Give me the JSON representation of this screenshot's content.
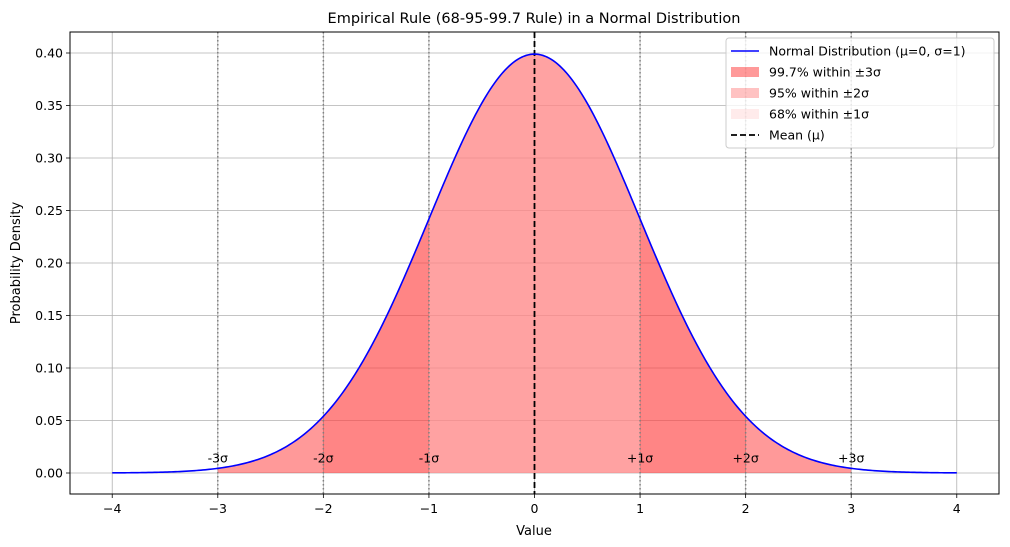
{
  "chart_data": {
    "type": "line",
    "title": "Empirical Rule (68-95-99.7 Rule) in a Normal Distribution",
    "xlabel": "Value",
    "ylabel": "Probability Density",
    "xlim": [
      -4.4,
      4.4
    ],
    "ylim": [
      -0.02,
      0.42
    ],
    "grid": true,
    "x_ticks": [
      -4,
      -3,
      -2,
      -1,
      0,
      1,
      2,
      3,
      4
    ],
    "x_tick_labels": [
      "−4",
      "−3",
      "−2",
      "−1",
      "0",
      "1",
      "2",
      "3",
      "4"
    ],
    "y_ticks": [
      0.0,
      0.05,
      0.1,
      0.15,
      0.2,
      0.25,
      0.3,
      0.35,
      0.4
    ],
    "y_tick_labels": [
      "0.00",
      "0.05",
      "0.10",
      "0.15",
      "0.20",
      "0.25",
      "0.30",
      "0.35",
      "0.40"
    ],
    "series": [
      {
        "name": "Normal Distribution (μ=0, σ=1)",
        "kind": "line",
        "color": "#0000ff",
        "mu": 0,
        "sigma": 1,
        "x_range": [
          -4,
          4
        ]
      }
    ],
    "shaded_regions": [
      {
        "name": "99.7% within ±3σ",
        "x_range": [
          -3,
          3
        ],
        "color": "#ff0000",
        "alpha": 0.4
      },
      {
        "name": "95% within ±2σ",
        "x_range": [
          -2,
          2
        ],
        "color": "#ff6666",
        "alpha": 0.4
      },
      {
        "name": "68% within ±1σ",
        "x_range": [
          -1,
          1
        ],
        "color": "#ffcccc",
        "alpha": 0.4
      }
    ],
    "mean_line": {
      "name": "Mean (μ)",
      "x": 0,
      "color": "#000000",
      "style": "dashed"
    },
    "sigma_lines": [
      -3,
      -2,
      -1,
      1,
      2,
      3
    ],
    "sigma_labels": [
      {
        "x": -3,
        "y": 0.01,
        "text": "-3σ"
      },
      {
        "x": -2,
        "y": 0.01,
        "text": "-2σ"
      },
      {
        "x": -1,
        "y": 0.01,
        "text": "-1σ"
      },
      {
        "x": 1,
        "y": 0.01,
        "text": "+1σ"
      },
      {
        "x": 2,
        "y": 0.01,
        "text": "+2σ"
      },
      {
        "x": 3,
        "y": 0.01,
        "text": "+3σ"
      }
    ],
    "legend": {
      "position": "top-right",
      "entries": [
        {
          "label": "Normal Distribution (μ=0, σ=1)",
          "kind": "line",
          "color": "#0000ff"
        },
        {
          "label": "99.7% within ±3σ",
          "kind": "patch",
          "color": "#ff0000",
          "alpha": 0.4
        },
        {
          "label": "95% within ±2σ",
          "kind": "patch",
          "color": "#ff6666",
          "alpha": 0.4
        },
        {
          "label": "68% within ±1σ",
          "kind": "patch",
          "color": "#ffcccc",
          "alpha": 0.4
        },
        {
          "label": "Mean (μ)",
          "kind": "dashed-line",
          "color": "#000000"
        }
      ]
    }
  }
}
